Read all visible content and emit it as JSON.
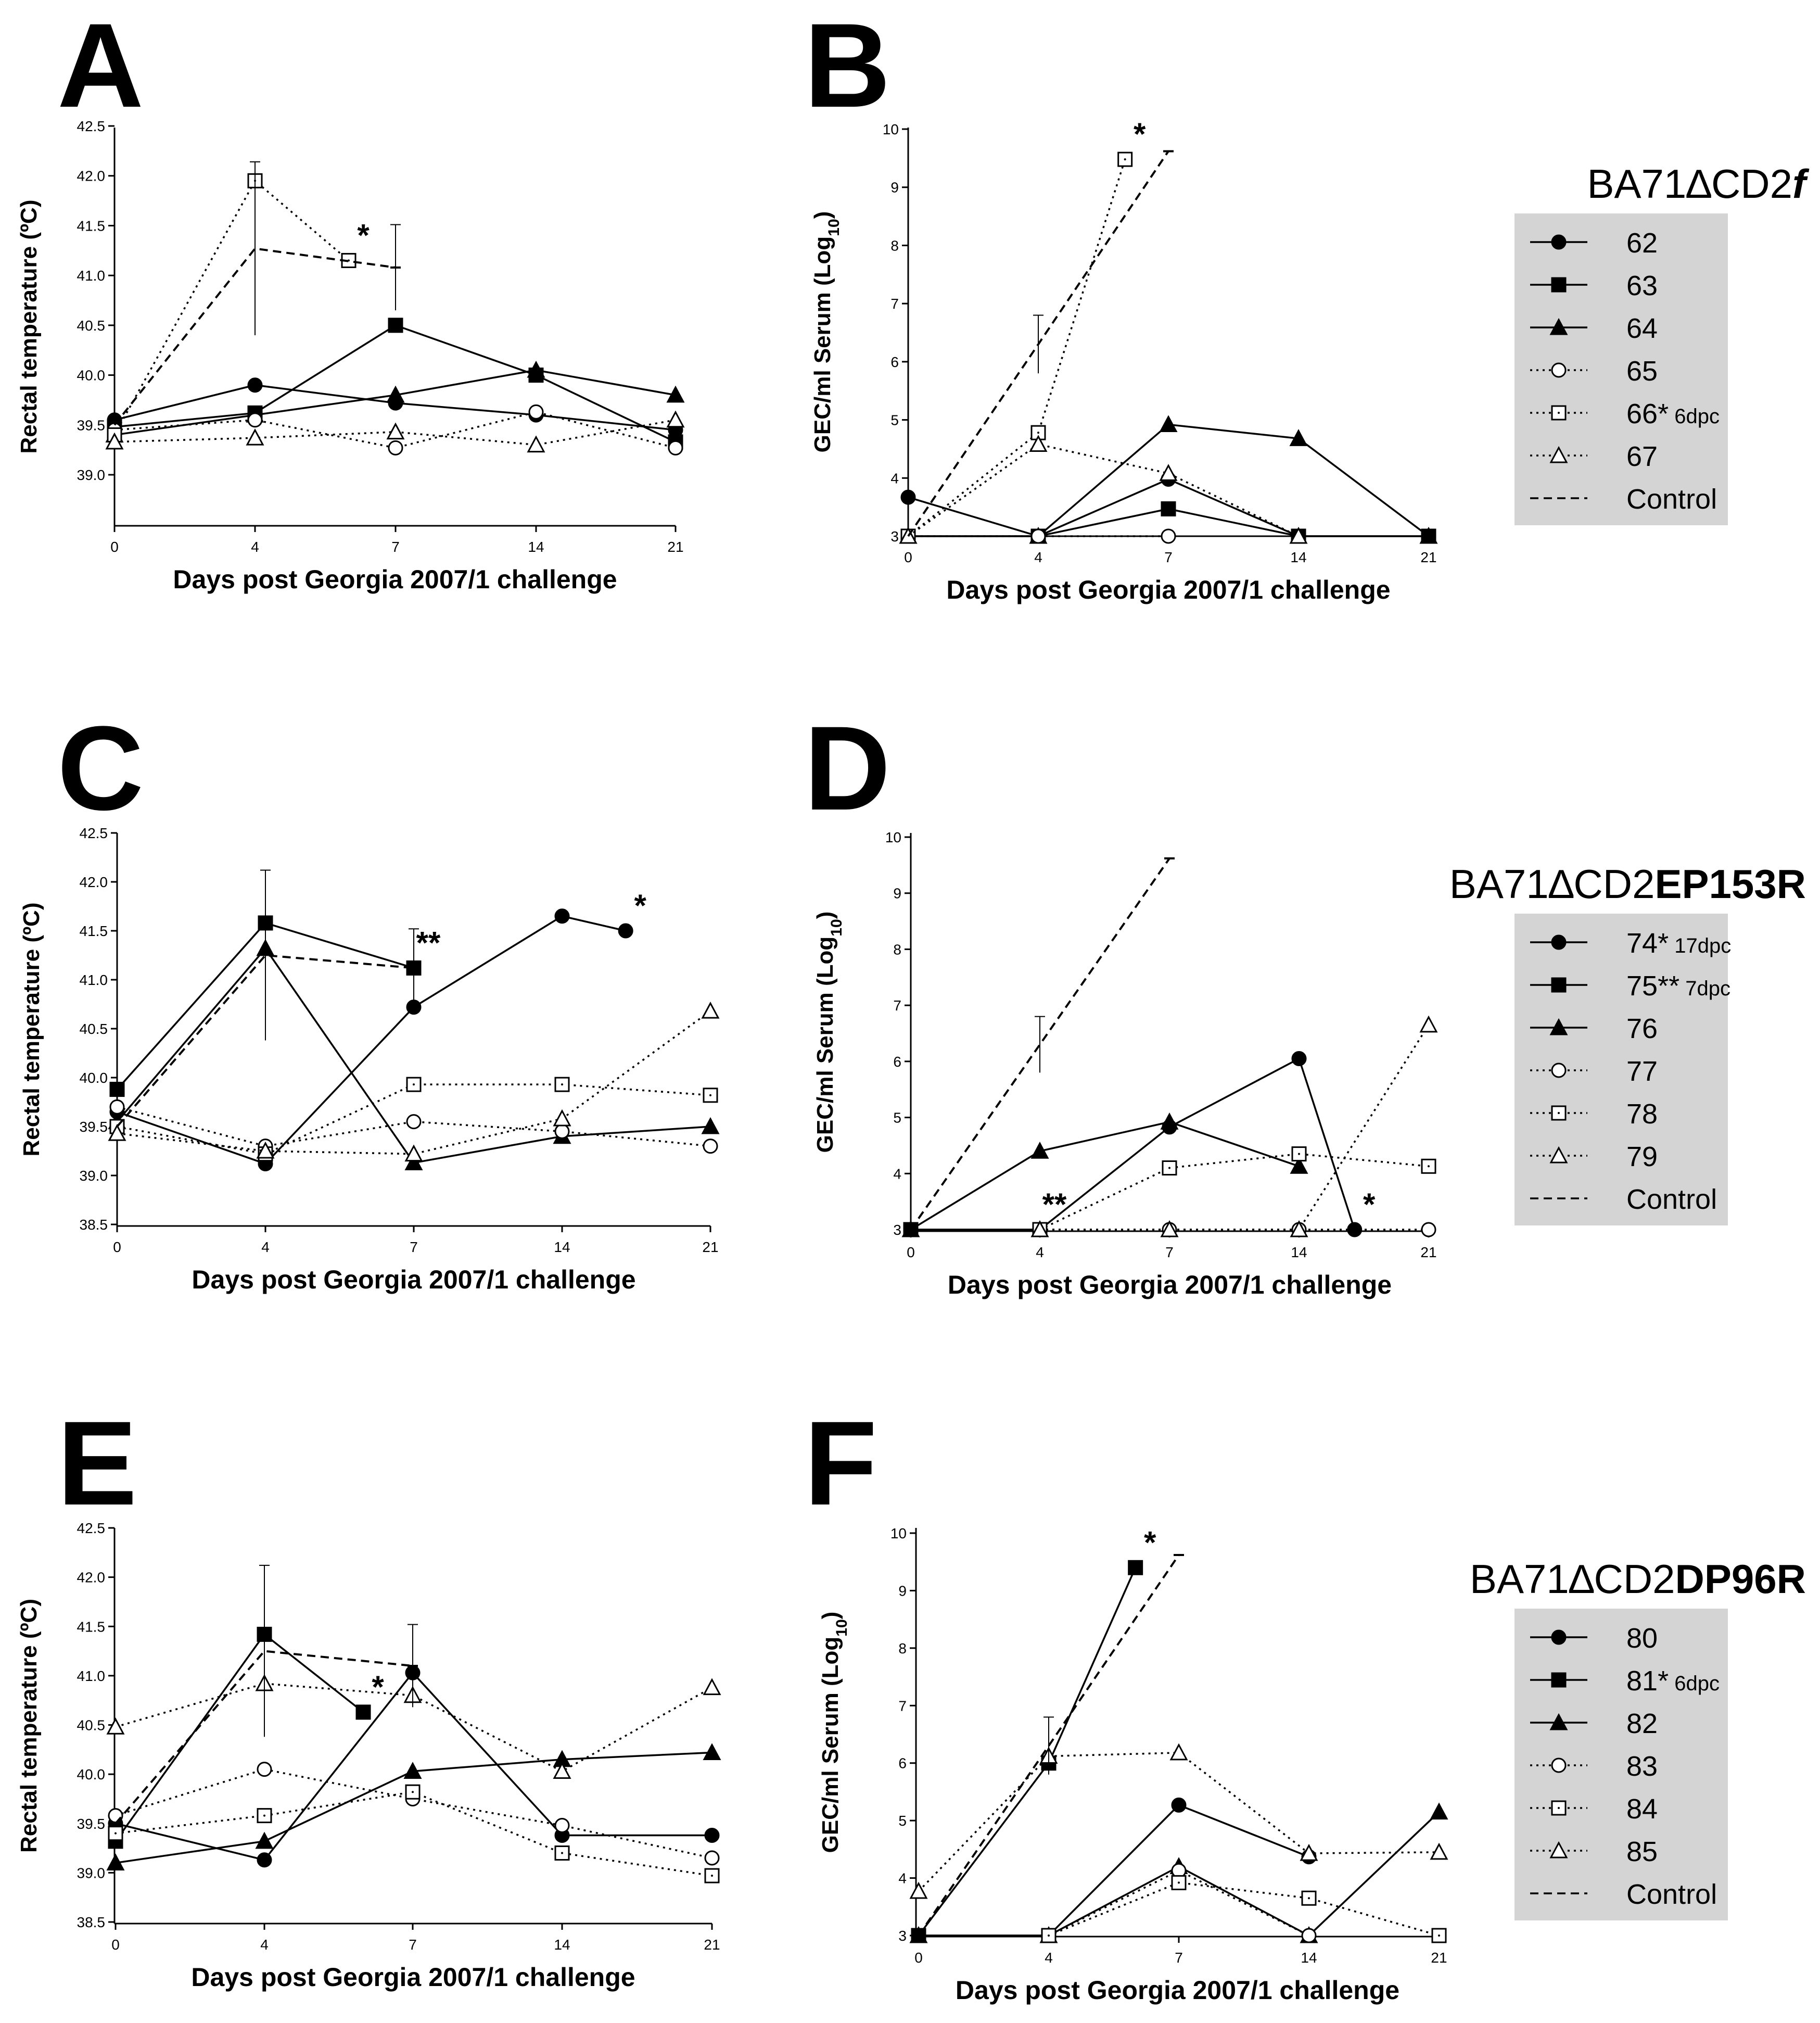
{
  "chart_data": [
    {
      "panel": "A",
      "type": "line",
      "ylabel": "Rectal temperature (ºC)",
      "xlabel": "Days post Georgia 2007/1 challenge",
      "x_ticks": [
        0,
        4,
        7,
        14,
        21
      ],
      "y_ticks": [
        "39.0",
        "39.5",
        "40.0",
        "40.5",
        "41.0",
        "41.5",
        "42.0",
        "42.5"
      ],
      "ylim": [
        38.5,
        42.5
      ],
      "series": [
        {
          "name": "62",
          "values": [
            39.55,
            39.9,
            39.72,
            39.6,
            39.45
          ]
        },
        {
          "name": "63",
          "values": [
            39.48,
            39.62,
            40.5,
            40.0,
            39.33
          ]
        },
        {
          "name": "64",
          "values": [
            39.4,
            39.6,
            39.8,
            40.05,
            39.8
          ]
        },
        {
          "name": "65",
          "values": [
            39.45,
            39.55,
            39.27,
            39.63,
            39.27
          ]
        },
        {
          "name": "66",
          "values": [
            39.4,
            41.95,
            41.15,
            null,
            null
          ],
          "x": [
            0,
            4,
            6,
            null,
            null
          ]
        },
        {
          "name": "67",
          "values": [
            39.33,
            39.37,
            39.43,
            39.3,
            39.55
          ]
        },
        {
          "name": "Control",
          "values": [
            39.5,
            41.27,
            41.08,
            null,
            null
          ],
          "error": [
            null,
            0.87,
            0.43,
            null,
            null
          ]
        }
      ],
      "annotations": [
        {
          "text": "*",
          "x": 6,
          "y": 41.15
        }
      ]
    },
    {
      "panel": "B",
      "type": "line",
      "ylabel": "GEC/ml Serum (Log10)",
      "xlabel": "Days post Georgia 2007/1 challenge",
      "x_ticks": [
        0,
        4,
        7,
        14,
        21
      ],
      "y_ticks": [
        "3",
        "4",
        "5",
        "6",
        "7",
        "8",
        "9",
        "10"
      ],
      "ylim": [
        3,
        10
      ],
      "series": [
        {
          "name": "62",
          "values": [
            3.67,
            3.0,
            3.98,
            3.0,
            3.0
          ]
        },
        {
          "name": "63",
          "values": [
            3.0,
            3.0,
            3.47,
            3.0,
            3.0
          ]
        },
        {
          "name": "64",
          "values": [
            3.0,
            3.0,
            4.92,
            4.68,
            3.0
          ]
        },
        {
          "name": "65",
          "values": [
            3.0,
            3.0,
            3.0,
            null,
            null
          ]
        },
        {
          "name": "66",
          "values": [
            3.0,
            4.78,
            9.48,
            null,
            null
          ],
          "x": [
            0,
            4,
            6,
            null,
            null
          ]
        },
        {
          "name": "67",
          "values": [
            3.0,
            4.58,
            4.08,
            3.0,
            null
          ]
        },
        {
          "name": "Control",
          "values": [
            3.0,
            6.3,
            9.62,
            null,
            null
          ],
          "error": [
            null,
            0.5,
            null,
            null,
            null
          ]
        }
      ],
      "annotations": [
        {
          "text": "*",
          "x": 6,
          "y": 9.48
        }
      ],
      "legend": {
        "title": "BA71∆CD2f",
        "items": [
          {
            "label": "62",
            "sub": ""
          },
          {
            "label": "63",
            "sub": ""
          },
          {
            "label": "64",
            "sub": ""
          },
          {
            "label": "65",
            "sub": ""
          },
          {
            "label": "66*",
            "sub": "6dpc"
          },
          {
            "label": "67",
            "sub": ""
          },
          {
            "label": "Control",
            "sub": ""
          }
        ]
      }
    },
    {
      "panel": "C",
      "type": "line",
      "ylabel": "Rectal temperature (ºC)",
      "xlabel": "Days post Georgia 2007/1 challenge",
      "x_ticks": [
        0,
        4,
        7,
        14,
        21
      ],
      "y_ticks": [
        "38.5",
        "39.0",
        "39.5",
        "40.0",
        "40.5",
        "41.0",
        "41.5",
        "42.0",
        "42.5"
      ],
      "ylim": [
        38.5,
        42.5
      ],
      "series": [
        {
          "name": "74",
          "values": [
            39.65,
            39.12,
            40.72,
            41.65,
            41.5
          ],
          "x": [
            0,
            4,
            7,
            14,
            17
          ]
        },
        {
          "name": "75",
          "values": [
            39.88,
            41.58,
            41.12,
            null,
            null
          ]
        },
        {
          "name": "76",
          "values": [
            39.55,
            41.32,
            39.13,
            39.4,
            39.5
          ]
        },
        {
          "name": "77",
          "values": [
            39.7,
            39.3,
            39.55,
            39.45,
            39.3
          ]
        },
        {
          "name": "78",
          "values": [
            39.5,
            39.22,
            39.93,
            39.93,
            39.82
          ]
        },
        {
          "name": "79",
          "values": [
            39.43,
            39.25,
            39.22,
            39.58,
            40.68
          ]
        },
        {
          "name": "Control",
          "values": [
            39.5,
            41.25,
            41.12,
            null,
            null
          ],
          "error": [
            null,
            0.87,
            0.4,
            null,
            null
          ]
        }
      ],
      "annotations": [
        {
          "text": "**",
          "x": 7,
          "y": 41.12
        },
        {
          "text": "*",
          "x": 17,
          "y": 41.5
        }
      ]
    },
    {
      "panel": "D",
      "type": "line",
      "ylabel": "GEC/ml Serum (Log10)",
      "xlabel": "Days post Georgia 2007/1 challenge",
      "x_ticks": [
        0,
        4,
        7,
        14,
        21
      ],
      "y_ticks": [
        "3",
        "4",
        "5",
        "6",
        "7",
        "8",
        "9",
        "10"
      ],
      "ylim": [
        3,
        10
      ],
      "series": [
        {
          "name": "74",
          "values": [
            3.0,
            3.0,
            4.83,
            6.05,
            3.0
          ],
          "x": [
            0,
            4,
            7,
            14,
            17
          ]
        },
        {
          "name": "75",
          "values": [
            3.0,
            3.0,
            null,
            null,
            null
          ]
        },
        {
          "name": "76",
          "values": [
            3.0,
            4.4,
            4.92,
            4.13,
            null
          ]
        },
        {
          "name": "77",
          "values": [
            null,
            3.0,
            3.0,
            3.0,
            3.0
          ]
        },
        {
          "name": "78",
          "values": [
            null,
            3.0,
            4.1,
            4.35,
            4.13
          ]
        },
        {
          "name": "79",
          "values": [
            null,
            3.0,
            3.0,
            3.0,
            6.65
          ]
        },
        {
          "name": "Control",
          "values": [
            3.0,
            6.3,
            9.62,
            null,
            null
          ],
          "error": [
            null,
            0.5,
            null,
            null,
            null
          ]
        }
      ],
      "annotations": [
        {
          "text": "**",
          "x": 4,
          "y": 3.0
        },
        {
          "text": "*",
          "x": 17,
          "y": 3.0
        }
      ],
      "legend": {
        "title": "BA71∆CD2EP153R",
        "items": [
          {
            "label": "74*",
            "sub": "17dpc"
          },
          {
            "label": "75**",
            "sub": "7dpc"
          },
          {
            "label": "76",
            "sub": ""
          },
          {
            "label": "77",
            "sub": ""
          },
          {
            "label": "78",
            "sub": ""
          },
          {
            "label": "79",
            "sub": ""
          },
          {
            "label": "Control",
            "sub": ""
          }
        ]
      }
    },
    {
      "panel": "E",
      "type": "line",
      "ylabel": "Rectal temperature (ºC)",
      "xlabel": "Days post Georgia 2007/1 challenge",
      "x_ticks": [
        0,
        4,
        7,
        14,
        21
      ],
      "y_ticks": [
        "38.5",
        "39.0",
        "39.5",
        "40.0",
        "40.5",
        "41.0",
        "41.5",
        "42.0",
        "42.5"
      ],
      "ylim": [
        38.5,
        42.5
      ],
      "series": [
        {
          "name": "80",
          "values": [
            39.5,
            39.13,
            41.03,
            39.38,
            39.38
          ]
        },
        {
          "name": "81",
          "values": [
            39.32,
            41.42,
            40.63,
            null,
            null
          ],
          "x": [
            0,
            4,
            6,
            null,
            null
          ]
        },
        {
          "name": "82",
          "values": [
            39.1,
            39.32,
            40.03,
            40.15,
            40.22
          ]
        },
        {
          "name": "83",
          "values": [
            39.58,
            40.05,
            39.75,
            39.48,
            39.15
          ]
        },
        {
          "name": "84",
          "values": [
            39.4,
            39.58,
            39.82,
            39.2,
            38.97
          ]
        },
        {
          "name": "85",
          "values": [
            40.48,
            40.92,
            40.8,
            40.03,
            40.88
          ]
        },
        {
          "name": "Control",
          "values": [
            39.5,
            41.25,
            41.1,
            null,
            null
          ],
          "error": [
            null,
            0.87,
            0.42,
            null,
            null
          ]
        }
      ],
      "annotations": [
        {
          "text": "*",
          "x": 6,
          "y": 40.63
        }
      ]
    },
    {
      "panel": "F",
      "type": "line",
      "ylabel": "GEC/ml Serum (Log10)",
      "xlabel": "Days post Georgia 2007/1 challenge",
      "x_ticks": [
        0,
        4,
        7,
        14,
        21
      ],
      "y_ticks": [
        "3",
        "4",
        "5",
        "6",
        "7",
        "8",
        "9",
        "10"
      ],
      "ylim": [
        3,
        10
      ],
      "series": [
        {
          "name": "80",
          "values": [
            3.0,
            3.0,
            5.27,
            4.37,
            null
          ]
        },
        {
          "name": "81",
          "values": [
            3.0,
            6.0,
            9.4,
            null,
            null
          ],
          "x": [
            0,
            4,
            6,
            null,
            null
          ]
        },
        {
          "name": "82",
          "values": [
            3.0,
            3.0,
            4.2,
            3.0,
            5.15
          ]
        },
        {
          "name": "83",
          "values": [
            null,
            3.0,
            4.13,
            3.0,
            null
          ]
        },
        {
          "name": "84",
          "values": [
            null,
            3.0,
            3.92,
            3.65,
            3.0
          ]
        },
        {
          "name": "85",
          "values": [
            3.77,
            6.12,
            6.18,
            4.43,
            4.45
          ]
        },
        {
          "name": "Control",
          "values": [
            3.0,
            6.3,
            9.62,
            null,
            null
          ],
          "error": [
            null,
            0.5,
            null,
            null,
            null
          ]
        }
      ],
      "annotations": [
        {
          "text": "*",
          "x": 6,
          "y": 9.4
        }
      ],
      "legend": {
        "title": "BA71∆CD2DP96R",
        "items": [
          {
            "label": "80",
            "sub": ""
          },
          {
            "label": "81*",
            "sub": "6dpc"
          },
          {
            "label": "82",
            "sub": ""
          },
          {
            "label": "83",
            "sub": ""
          },
          {
            "label": "84",
            "sub": ""
          },
          {
            "label": "85",
            "sub": ""
          },
          {
            "label": "Control",
            "sub": ""
          }
        ]
      }
    }
  ],
  "series_style": {
    "marker_color": "#000000",
    "legend_background": "#d4d4d4"
  }
}
